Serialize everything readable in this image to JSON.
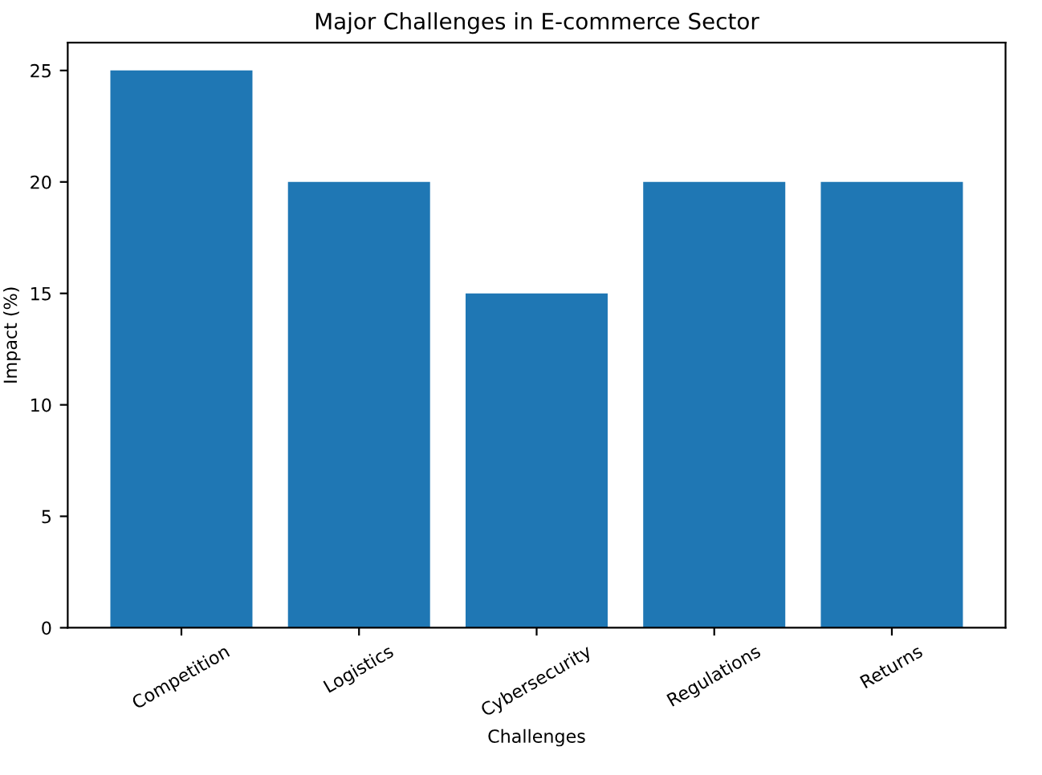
{
  "chart_data": {
    "type": "bar",
    "title": "Major Challenges in E-commerce Sector",
    "xlabel": "Challenges",
    "ylabel": "Impact (%)",
    "categories": [
      "Competition",
      "Logistics",
      "Cybersecurity",
      "Regulations",
      "Returns"
    ],
    "values": [
      25,
      20,
      15,
      20,
      20
    ],
    "color": "#1f77b4",
    "ylim": [
      0,
      26.25
    ],
    "yticks": [
      0,
      5,
      10,
      15,
      20,
      25
    ],
    "grid": false,
    "legend": false
  }
}
